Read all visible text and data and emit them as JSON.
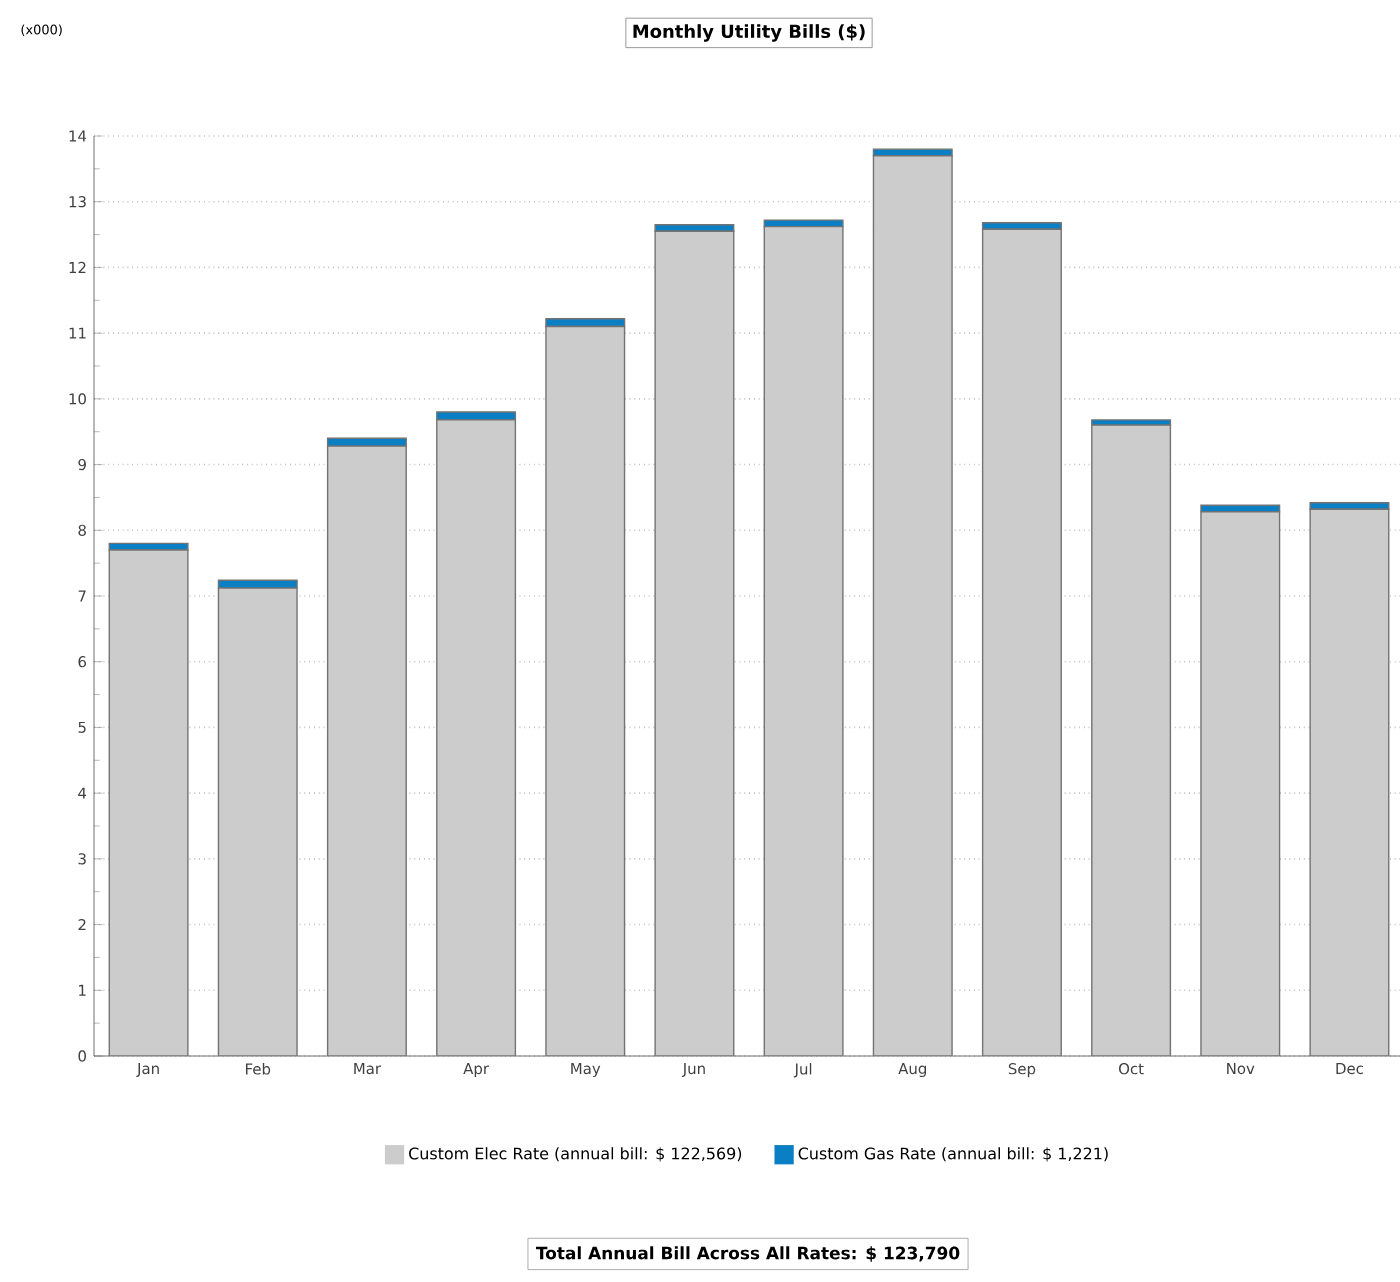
{
  "chart_data": {
    "type": "bar",
    "title": "Monthly Utility Bills ($)",
    "stacked": true,
    "categories": [
      "Jan",
      "Feb",
      "Mar",
      "Apr",
      "May",
      "Jun",
      "Jul",
      "Aug",
      "Sep",
      "Oct",
      "Nov",
      "Dec"
    ],
    "series": [
      {
        "name": "Custom Elec Rate (annual bill: $ 122,569)",
        "color": "#cccccc",
        "values": [
          7.7,
          7.12,
          9.28,
          9.68,
          11.1,
          12.55,
          12.62,
          13.7,
          12.58,
          9.6,
          8.28,
          8.32
        ]
      },
      {
        "name": "Custom Gas Rate (annual bill: $ 1,221)",
        "color": "#0a7fc4",
        "values": [
          0.1,
          0.12,
          0.12,
          0.12,
          0.12,
          0.1,
          0.1,
          0.1,
          0.1,
          0.08,
          0.1,
          0.1
        ]
      }
    ],
    "ylim": [
      0,
      14
    ],
    "yticks": [
      0,
      1,
      2,
      3,
      4,
      5,
      6,
      7,
      8,
      9,
      10,
      11,
      12,
      13,
      14
    ],
    "grid": "y",
    "legend": "bottom",
    "annotations": [
      "(x000)",
      "Total Annual Bill Across All Rates:  $ 123,790"
    ]
  }
}
